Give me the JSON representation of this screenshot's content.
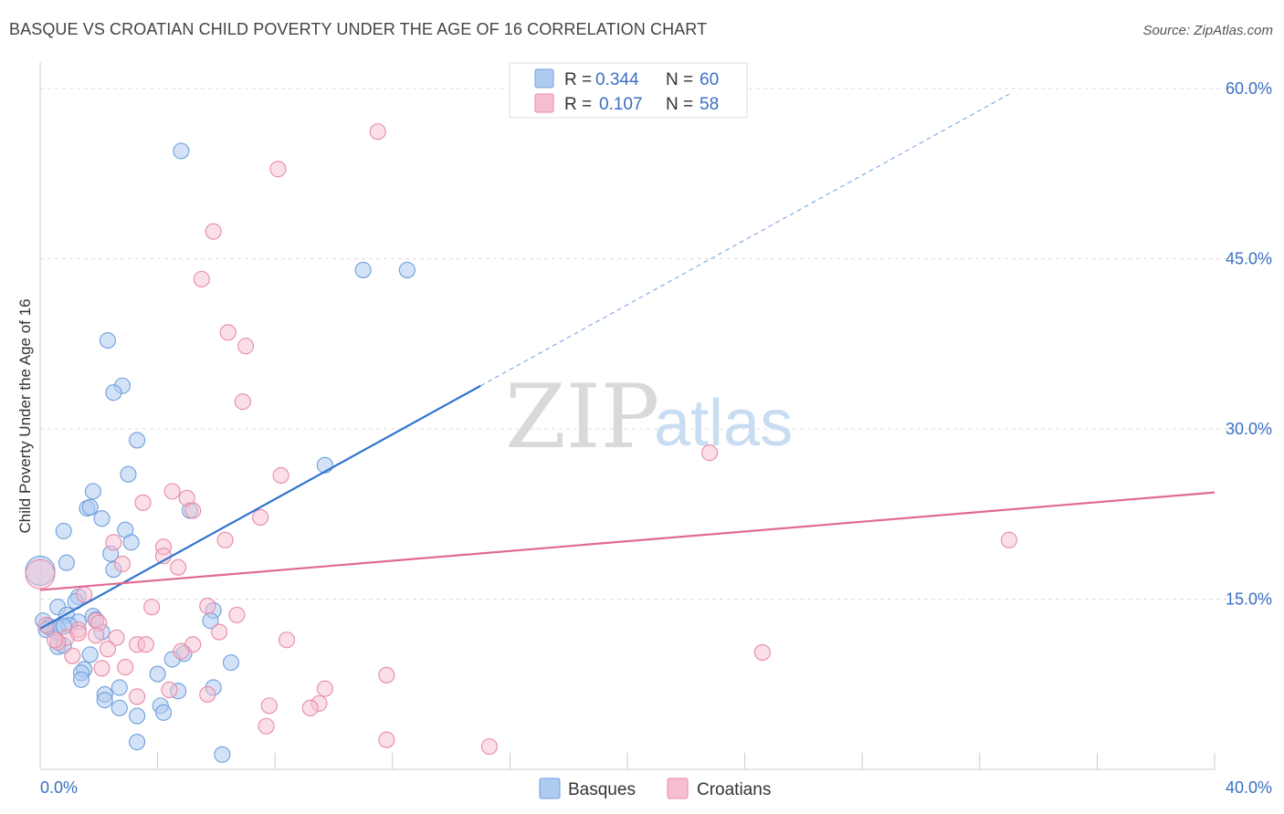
{
  "title": "BASQUE VS CROATIAN CHILD POVERTY UNDER THE AGE OF 16 CORRELATION CHART",
  "source": "Source: ZipAtlas.com",
  "watermark": {
    "zip": "ZIP",
    "atlas": "atlas"
  },
  "colors": {
    "basque_fill": "#aecbf0",
    "basque_stroke": "#6f9fdc",
    "basque_line": "#2f74d0",
    "croatian_fill": "#f6bfd0",
    "croatian_stroke": "#e88aa8",
    "croatian_line": "#e06a94",
    "tick_text": "#3a6fc4",
    "grid": "#dddddd"
  },
  "legend": {
    "r_label": "R =",
    "n_label": "N =",
    "rows": [
      {
        "r": "0.344",
        "n": "60"
      },
      {
        "r": "0.107",
        "n": "58"
      }
    ]
  },
  "chart_data": {
    "type": "scatter",
    "xlabel": "",
    "ylabel": "Child Poverty Under the Age of 16",
    "xlim": [
      0,
      40
    ],
    "ylim": [
      0,
      60
    ],
    "x_ticks": [
      "0.0%",
      "40.0%"
    ],
    "y_ticks": [
      "15.0%",
      "30.0%",
      "45.0%",
      "60.0%"
    ],
    "y_tick_values": [
      15,
      30,
      45,
      60
    ],
    "grid": true,
    "legend_position": "top-center",
    "series": [
      {
        "name": "Basques",
        "r": 0.344,
        "n": 60,
        "trend": {
          "x0": 0,
          "y0": 12.4,
          "x1": 15.0,
          "y1": 33.8,
          "dash_x1": 33.0,
          "dash_y1": 59.5
        },
        "points": [
          [
            4.8,
            54.5
          ],
          [
            11.0,
            44.0
          ],
          [
            12.5,
            44.0
          ],
          [
            2.3,
            37.8
          ],
          [
            2.8,
            33.8
          ],
          [
            2.5,
            33.2
          ],
          [
            3.3,
            29.0
          ],
          [
            9.7,
            26.8
          ],
          [
            3.0,
            26.0
          ],
          [
            1.8,
            24.5
          ],
          [
            1.6,
            23.0
          ],
          [
            1.7,
            23.1
          ],
          [
            5.1,
            22.8
          ],
          [
            2.1,
            22.1
          ],
          [
            0.8,
            21.0
          ],
          [
            2.9,
            21.1
          ],
          [
            3.1,
            20.0
          ],
          [
            2.4,
            19.0
          ],
          [
            0.9,
            18.2
          ],
          [
            2.5,
            17.6
          ],
          [
            0.0,
            17.5
          ],
          [
            1.3,
            15.2
          ],
          [
            1.2,
            14.8
          ],
          [
            0.6,
            14.3
          ],
          [
            0.1,
            13.1
          ],
          [
            0.9,
            13.6
          ],
          [
            1.8,
            13.5
          ],
          [
            1.9,
            13.2
          ],
          [
            1.3,
            13.0
          ],
          [
            1.0,
            12.7
          ],
          [
            0.3,
            12.5
          ],
          [
            0.3,
            12.6
          ],
          [
            0.5,
            12.2
          ],
          [
            0.6,
            12.4
          ],
          [
            0.8,
            12.6
          ],
          [
            5.9,
            14.0
          ],
          [
            5.8,
            13.1
          ],
          [
            2.1,
            12.1
          ],
          [
            0.6,
            10.8
          ],
          [
            0.8,
            10.9
          ],
          [
            1.7,
            10.1
          ],
          [
            4.9,
            10.2
          ],
          [
            4.5,
            9.7
          ],
          [
            6.5,
            9.4
          ],
          [
            1.5,
            8.8
          ],
          [
            1.4,
            8.5
          ],
          [
            1.4,
            7.9
          ],
          [
            4.0,
            8.4
          ],
          [
            2.7,
            7.2
          ],
          [
            5.9,
            7.2
          ],
          [
            4.7,
            6.9
          ],
          [
            2.2,
            6.6
          ],
          [
            2.2,
            6.1
          ],
          [
            2.7,
            5.4
          ],
          [
            4.1,
            5.6
          ],
          [
            4.2,
            5.0
          ],
          [
            3.3,
            4.7
          ],
          [
            3.3,
            2.4
          ],
          [
            6.2,
            1.3
          ],
          [
            0.2,
            12.3
          ]
        ]
      },
      {
        "name": "Croatians",
        "r": 0.107,
        "n": 58,
        "trend": {
          "x0": 0,
          "y0": 15.8,
          "x1": 40.0,
          "y1": 24.4
        },
        "points": [
          [
            11.5,
            56.2
          ],
          [
            8.1,
            52.9
          ],
          [
            5.9,
            47.4
          ],
          [
            5.5,
            43.2
          ],
          [
            6.4,
            38.5
          ],
          [
            7.0,
            37.3
          ],
          [
            6.9,
            32.4
          ],
          [
            22.8,
            27.9
          ],
          [
            8.2,
            25.9
          ],
          [
            4.5,
            24.5
          ],
          [
            5.0,
            23.9
          ],
          [
            3.5,
            23.5
          ],
          [
            5.2,
            22.8
          ],
          [
            7.5,
            22.2
          ],
          [
            2.5,
            20.0
          ],
          [
            6.3,
            20.2
          ],
          [
            33.0,
            20.2
          ],
          [
            4.2,
            19.6
          ],
          [
            4.2,
            18.8
          ],
          [
            2.8,
            18.1
          ],
          [
            4.7,
            17.8
          ],
          [
            0.0,
            17.2
          ],
          [
            1.5,
            15.4
          ],
          [
            3.8,
            14.3
          ],
          [
            5.7,
            14.4
          ],
          [
            6.7,
            13.6
          ],
          [
            1.9,
            13.1
          ],
          [
            2.0,
            12.9
          ],
          [
            1.3,
            12.3
          ],
          [
            0.9,
            11.6
          ],
          [
            1.3,
            12.0
          ],
          [
            0.6,
            11.2
          ],
          [
            1.9,
            11.8
          ],
          [
            2.6,
            11.6
          ],
          [
            6.1,
            12.1
          ],
          [
            8.4,
            11.4
          ],
          [
            3.3,
            11.0
          ],
          [
            3.6,
            11.0
          ],
          [
            5.2,
            11.0
          ],
          [
            2.3,
            10.6
          ],
          [
            4.8,
            10.4
          ],
          [
            1.1,
            10.0
          ],
          [
            24.6,
            10.3
          ],
          [
            2.9,
            9.0
          ],
          [
            2.1,
            8.9
          ],
          [
            11.8,
            8.3
          ],
          [
            9.7,
            7.1
          ],
          [
            4.4,
            7.0
          ],
          [
            5.7,
            6.6
          ],
          [
            3.3,
            6.4
          ],
          [
            7.8,
            5.6
          ],
          [
            9.5,
            5.8
          ],
          [
            9.2,
            5.4
          ],
          [
            7.7,
            3.8
          ],
          [
            11.8,
            2.6
          ],
          [
            15.3,
            2.0
          ],
          [
            0.5,
            11.4
          ],
          [
            0.2,
            12.7
          ]
        ]
      }
    ]
  },
  "bottom_legend": {
    "basques": "Basques",
    "croatians": "Croatians"
  }
}
